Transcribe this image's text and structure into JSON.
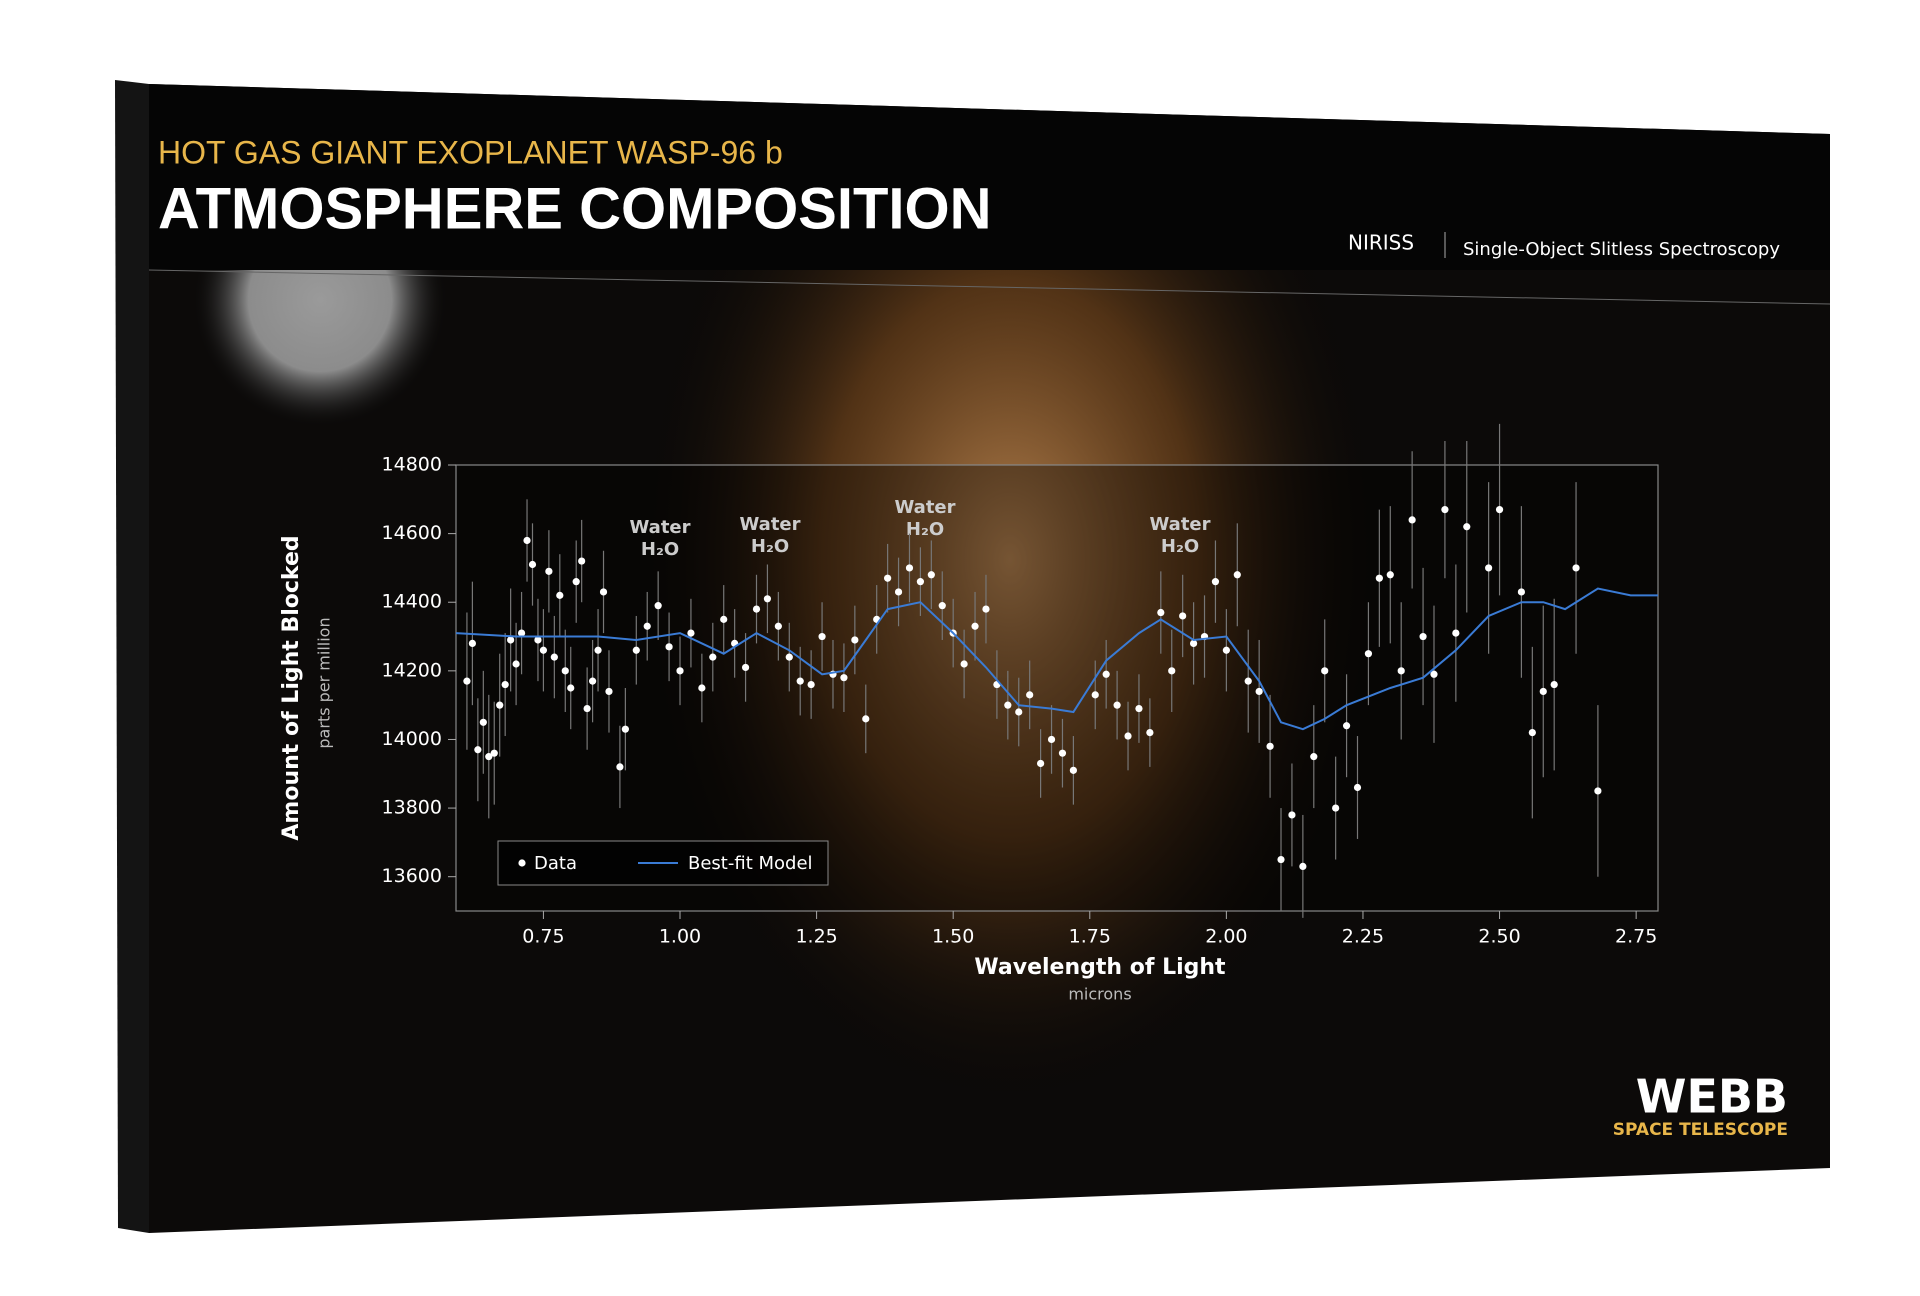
{
  "header": {
    "subtitle": "HOT GAS GIANT EXOPLANET WASP-96 b",
    "title": "ATMOSPHERE COMPOSITION",
    "instrument": "NIRISS",
    "mode": "Single-Object Slitless Spectroscopy"
  },
  "logo": {
    "name": "WEBB",
    "tagline": "SPACE TELESCOPE"
  },
  "chart_data": {
    "type": "scatter",
    "x_label": "Wavelength of Light",
    "x_unit": "microns",
    "y_label": "Amount of Light Blocked",
    "y_unit": "parts per million",
    "xlim": [
      0.59,
      2.79
    ],
    "ylim": [
      13500,
      14800
    ],
    "xticks": [
      0.75,
      {
        "value": 1.0,
        "label": "1.00"
      },
      1.25,
      {
        "value": 1.5,
        "label": "1.50"
      },
      1.75,
      {
        "value": 2.0,
        "label": "2.00"
      },
      2.25,
      {
        "value": 2.5,
        "label": "2.50"
      },
      2.75
    ],
    "yticks": [
      13600,
      13800,
      14000,
      14200,
      14400,
      14600,
      14800
    ],
    "annotations": [
      {
        "line1": "Water",
        "line2": "H₂O"
      },
      {
        "line1": "Water",
        "line2": "H₂O"
      },
      {
        "line1": "Water",
        "line2": "H₂O"
      },
      {
        "line1": "Water",
        "line2": "H₂O"
      }
    ],
    "legend": "lower left",
    "series": [
      {
        "name": "Data",
        "type": "scatter",
        "color": "#ffffff",
        "x": [
          0.61,
          0.62,
          0.63,
          0.64,
          0.65,
          0.66,
          0.67,
          0.68,
          0.69,
          0.7,
          0.71,
          0.72,
          0.73,
          0.74,
          0.75,
          0.76,
          0.77,
          0.78,
          0.79,
          0.8,
          0.81,
          0.82,
          0.83,
          0.84,
          0.85,
          0.86,
          0.87,
          0.89,
          0.9,
          0.92,
          0.94,
          0.96,
          0.98,
          1.0,
          1.02,
          1.04,
          1.06,
          1.08,
          1.1,
          1.12,
          1.14,
          1.16,
          1.18,
          1.2,
          1.22,
          1.24,
          1.26,
          1.28,
          1.3,
          1.32,
          1.34,
          1.36,
          1.38,
          1.4,
          1.42,
          1.44,
          1.46,
          1.48,
          1.5,
          1.52,
          1.54,
          1.56,
          1.58,
          1.6,
          1.62,
          1.64,
          1.66,
          1.68,
          1.7,
          1.72,
          1.76,
          1.78,
          1.8,
          1.82,
          1.84,
          1.86,
          1.88,
          1.9,
          1.92,
          1.94,
          1.96,
          1.98,
          2.0,
          2.02,
          2.04,
          2.06,
          2.08,
          2.1,
          2.12,
          2.14,
          2.16,
          2.18,
          2.2,
          2.22,
          2.24,
          2.26,
          2.28,
          2.3,
          2.32,
          2.34,
          2.36,
          2.38,
          2.4,
          2.42,
          2.44,
          2.48,
          2.5,
          2.54,
          2.56,
          2.58,
          2.6,
          2.64,
          2.68
        ],
        "values": [
          14170,
          14280,
          13970,
          14050,
          13950,
          13960,
          14100,
          14160,
          14290,
          14220,
          14310,
          14580,
          14510,
          14290,
          14260,
          14490,
          14240,
          14420,
          14200,
          14150,
          14460,
          14520,
          14090,
          14170,
          14260,
          14430,
          14140,
          13920,
          14030,
          14260,
          14330,
          14390,
          14270,
          14200,
          14310,
          14150,
          14240,
          14350,
          14280,
          14210,
          14380,
          14410,
          14330,
          14240,
          14170,
          14160,
          14300,
          14190,
          14180,
          14290,
          14060,
          14350,
          14470,
          14430,
          14500,
          14460,
          14480,
          14390,
          14310,
          14220,
          14330,
          14380,
          14160,
          14100,
          14080,
          14130,
          13930,
          14000,
          13960,
          13910,
          14130,
          14190,
          14100,
          14010,
          14090,
          14020,
          14370,
          14200,
          14360,
          14280,
          14300,
          14460,
          14260,
          14480,
          14170,
          14140,
          13980,
          13650,
          13780,
          13630,
          13950,
          14200,
          13800,
          14040,
          13860,
          14250,
          14470,
          14480,
          14200,
          14640,
          14300,
          14190,
          14670,
          14310,
          14620,
          14500,
          14670,
          14430,
          14020,
          14140,
          14160,
          14500,
          13850
        ],
        "errors": [
          200,
          180,
          150,
          150,
          180,
          150,
          150,
          150,
          150,
          120,
          120,
          120,
          120,
          120,
          120,
          120,
          120,
          120,
          120,
          120,
          120,
          120,
          120,
          120,
          120,
          120,
          120,
          120,
          120,
          100,
          100,
          100,
          100,
          100,
          100,
          100,
          100,
          100,
          100,
          100,
          100,
          100,
          100,
          100,
          100,
          100,
          100,
          100,
          100,
          100,
          100,
          100,
          100,
          100,
          100,
          100,
          100,
          100,
          100,
          100,
          100,
          100,
          100,
          100,
          100,
          100,
          100,
          100,
          100,
          100,
          100,
          100,
          100,
          100,
          100,
          100,
          120,
          120,
          120,
          120,
          120,
          120,
          120,
          150,
          150,
          150,
          150,
          150,
          150,
          150,
          150,
          150,
          150,
          150,
          150,
          150,
          200,
          200,
          200,
          200,
          200,
          200,
          200,
          200,
          250,
          250,
          250,
          250,
          250,
          250,
          250,
          250,
          250
        ]
      },
      {
        "name": "Best-fit Model",
        "type": "line",
        "color": "#3a7bd5",
        "x": [
          0.59,
          0.7,
          0.78,
          0.85,
          0.92,
          1.0,
          1.08,
          1.14,
          1.2,
          1.26,
          1.3,
          1.34,
          1.38,
          1.44,
          1.5,
          1.56,
          1.62,
          1.68,
          1.72,
          1.78,
          1.84,
          1.88,
          1.94,
          2.0,
          2.06,
          2.1,
          2.14,
          2.18,
          2.22,
          2.3,
          2.36,
          2.42,
          2.48,
          2.54,
          2.58,
          2.62,
          2.68,
          2.74,
          2.79
        ],
        "values": [
          14310,
          14300,
          14300,
          14300,
          14290,
          14310,
          14250,
          14310,
          14260,
          14190,
          14200,
          14290,
          14380,
          14400,
          14310,
          14210,
          14100,
          14090,
          14080,
          14230,
          14310,
          14350,
          14290,
          14300,
          14170,
          14050,
          14030,
          14060,
          14100,
          14150,
          14180,
          14260,
          14360,
          14400,
          14400,
          14380,
          14440,
          14420,
          14420
        ]
      }
    ]
  }
}
